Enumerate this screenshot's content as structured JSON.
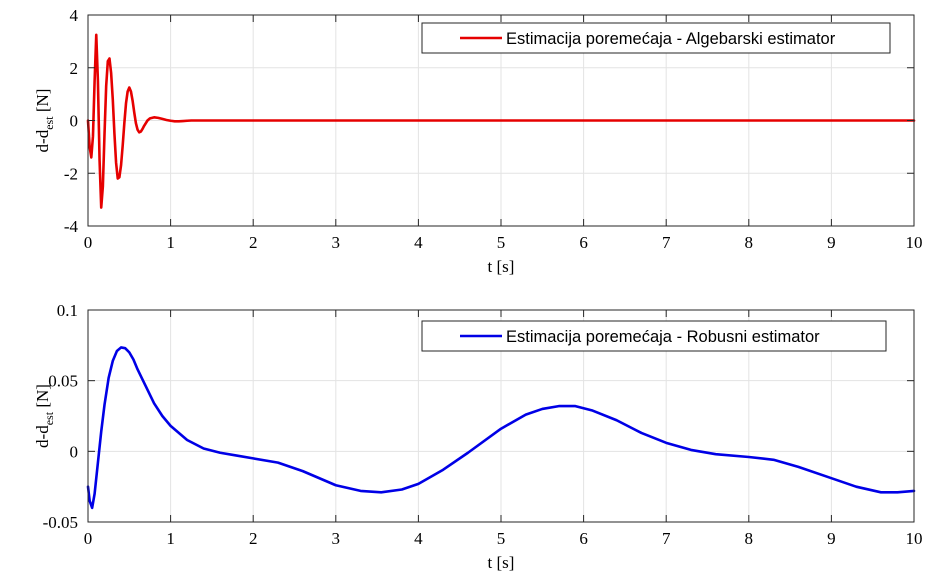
{
  "chart_data": [
    {
      "type": "line",
      "xlabel": "t [s]",
      "ylabel": {
        "main": "d-d",
        "sub": "est",
        "unit": "[N]"
      },
      "xlim": [
        0,
        10
      ],
      "ylim": [
        -4,
        4
      ],
      "xticks": [
        0,
        1,
        2,
        3,
        4,
        5,
        6,
        7,
        8,
        9,
        10
      ],
      "xtick_labels": [
        "0",
        "1",
        "2",
        "3",
        "4",
        "5",
        "6",
        "7",
        "8",
        "9",
        "10"
      ],
      "yticks": [
        -4,
        -2,
        0,
        2,
        4
      ],
      "ytick_labels": [
        "-4",
        "-2",
        "0",
        "2",
        "4"
      ],
      "grid": true,
      "legend_position": "top-right",
      "series": [
        {
          "name": "Estimacija poremećaja - Algebarski estimator",
          "color": "#e60000",
          "x": [
            0,
            0.02,
            0.04,
            0.06,
            0.08,
            0.1,
            0.12,
            0.14,
            0.16,
            0.18,
            0.2,
            0.22,
            0.24,
            0.26,
            0.28,
            0.3,
            0.32,
            0.34,
            0.36,
            0.38,
            0.4,
            0.42,
            0.44,
            0.46,
            0.48,
            0.5,
            0.52,
            0.54,
            0.56,
            0.58,
            0.6,
            0.62,
            0.64,
            0.66,
            0.68,
            0.7,
            0.72,
            0.75,
            0.8,
            0.85,
            0.9,
            0.95,
            1.0,
            1.05,
            1.1,
            1.15,
            1.2,
            1.25,
            1.3,
            1.35,
            1.4,
            1.5,
            2.0,
            3.0,
            4.0,
            5.0,
            6.0,
            7.0,
            8.0,
            9.0,
            10.0
          ],
          "y": [
            0,
            -1.0,
            -1.4,
            -0.6,
            1.5,
            3.25,
            1.5,
            -1.5,
            -3.3,
            -2.5,
            -0.5,
            1.3,
            2.25,
            2.35,
            1.8,
            0.8,
            -0.5,
            -1.6,
            -2.2,
            -2.15,
            -1.7,
            -0.95,
            -0.1,
            0.65,
            1.1,
            1.25,
            1.1,
            0.75,
            0.3,
            -0.1,
            -0.35,
            -0.45,
            -0.42,
            -0.32,
            -0.2,
            -0.1,
            0.0,
            0.08,
            0.12,
            0.1,
            0.06,
            0.02,
            -0.01,
            -0.03,
            -0.03,
            -0.02,
            -0.01,
            0.0,
            0.0,
            0.0,
            0.0,
            0.0,
            0.0,
            0.0,
            0.0,
            0.0,
            0.0,
            0.0,
            0.0,
            0.0,
            0.0
          ]
        }
      ]
    },
    {
      "type": "line",
      "xlabel": "t [s]",
      "ylabel": {
        "main": "d-d",
        "sub": "est",
        "unit": "[N]"
      },
      "xlim": [
        0,
        10
      ],
      "ylim": [
        -0.05,
        0.1
      ],
      "xticks": [
        0,
        1,
        2,
        3,
        4,
        5,
        6,
        7,
        8,
        9,
        10
      ],
      "xtick_labels": [
        "0",
        "1",
        "2",
        "3",
        "4",
        "5",
        "6",
        "7",
        "8",
        "9",
        "10"
      ],
      "yticks": [
        -0.05,
        0,
        0.05,
        0.1
      ],
      "ytick_labels": [
        "-0.05",
        "0",
        "0.05",
        "0.1"
      ],
      "grid": true,
      "legend_position": "top-right",
      "series": [
        {
          "name": "Estimacija poremećaja - Robusni estimator",
          "color": "#0000e6",
          "x": [
            0,
            0.02,
            0.05,
            0.08,
            0.12,
            0.16,
            0.2,
            0.25,
            0.3,
            0.35,
            0.4,
            0.45,
            0.5,
            0.55,
            0.6,
            0.7,
            0.8,
            0.9,
            1.0,
            1.2,
            1.4,
            1.6,
            1.8,
            2.0,
            2.3,
            2.6,
            3.0,
            3.3,
            3.55,
            3.8,
            4.0,
            4.3,
            4.6,
            5.0,
            5.3,
            5.5,
            5.7,
            5.9,
            6.1,
            6.4,
            6.7,
            7.0,
            7.3,
            7.6,
            8.0,
            8.3,
            8.6,
            9.0,
            9.3,
            9.6,
            9.8,
            10.0
          ],
          "y": [
            -0.025,
            -0.035,
            -0.04,
            -0.03,
            -0.008,
            0.014,
            0.033,
            0.052,
            0.064,
            0.071,
            0.0735,
            0.073,
            0.07,
            0.065,
            0.058,
            0.046,
            0.034,
            0.025,
            0.018,
            0.008,
            0.002,
            -0.001,
            -0.003,
            -0.005,
            -0.008,
            -0.014,
            -0.024,
            -0.028,
            -0.029,
            -0.027,
            -0.023,
            -0.013,
            -0.001,
            0.016,
            0.026,
            0.03,
            0.032,
            0.032,
            0.029,
            0.022,
            0.013,
            0.006,
            0.001,
            -0.002,
            -0.004,
            -0.006,
            -0.011,
            -0.019,
            -0.025,
            -0.029,
            -0.029,
            -0.028
          ]
        }
      ]
    }
  ]
}
